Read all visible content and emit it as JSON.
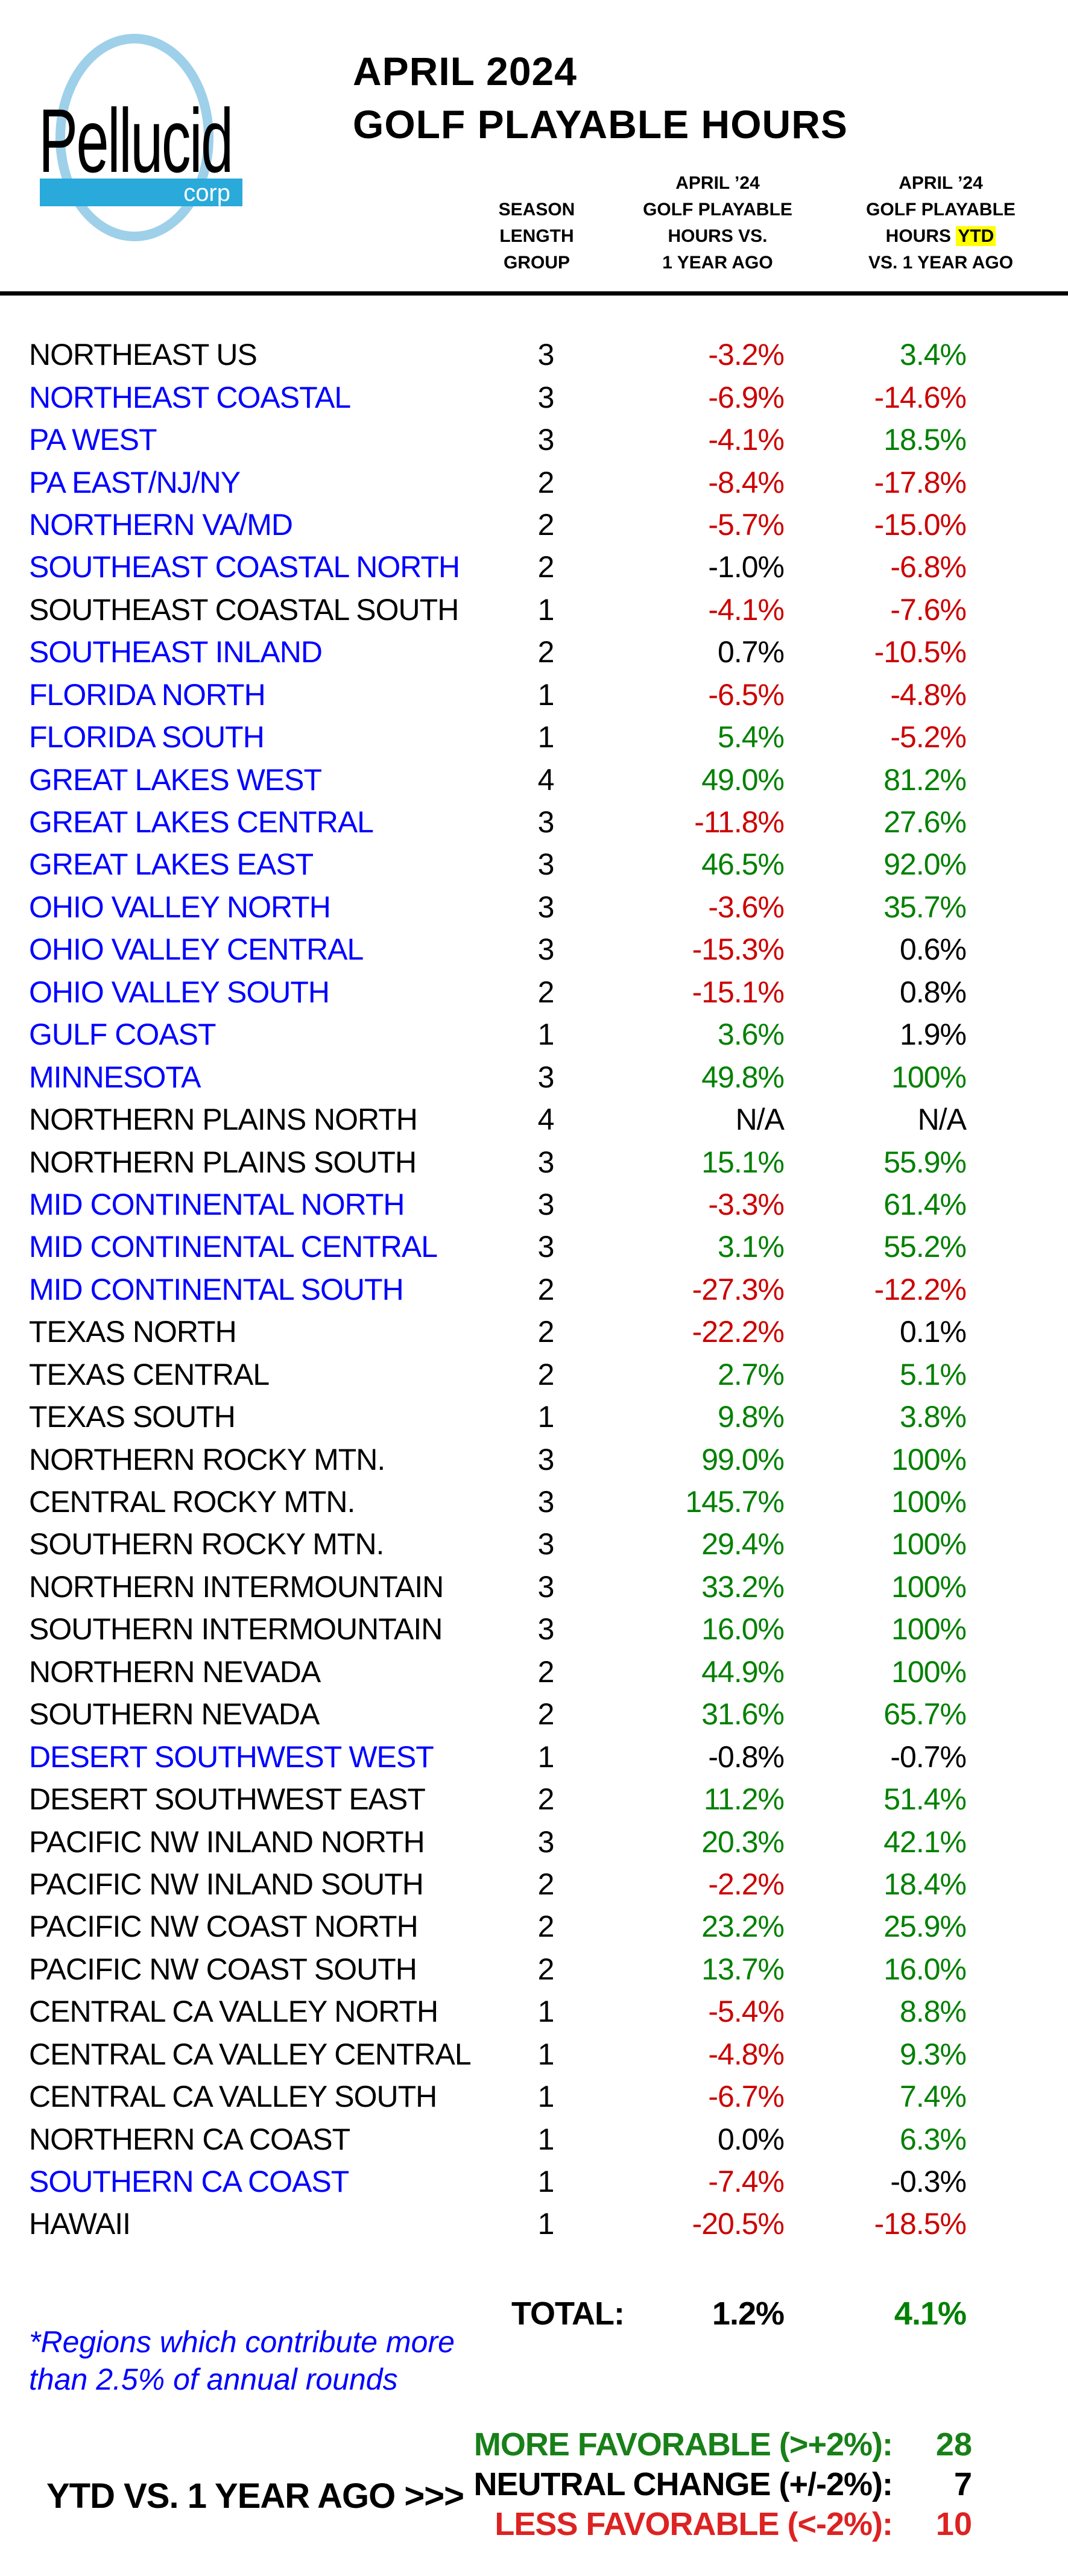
{
  "header": {
    "logo": {
      "name": "Pellucid",
      "suffix": "corp"
    },
    "title_line1": "APRIL 2024",
    "title_line2": "GOLF PLAYABLE HOURS",
    "columns": {
      "season": [
        "SEASON",
        "LENGTH",
        "GROUP"
      ],
      "col1": [
        "APRIL ’24",
        "GOLF PLAYABLE",
        "HOURS VS.",
        "1 YEAR AGO"
      ],
      "col2": {
        "line1": "APRIL ’24",
        "line2": "GOLF PLAYABLE",
        "line3_prefix": "HOURS",
        "line3_highlight": "YTD",
        "line4": "VS. 1 YEAR AGO"
      }
    }
  },
  "table": {
    "rows": [
      {
        "region": "NORTHEAST  US",
        "region_color": "black",
        "group": "3",
        "mtd": "-3.2%",
        "mtd_color": "red",
        "ytd": "3.4%",
        "ytd_color": "green"
      },
      {
        "region": "NORTHEAST COASTAL",
        "region_color": "blue",
        "group": "3",
        "mtd": "-6.9%",
        "mtd_color": "red",
        "ytd": "-14.6%",
        "ytd_color": "red"
      },
      {
        "region": "PA WEST",
        "region_color": "blue",
        "group": "3",
        "mtd": "-4.1%",
        "mtd_color": "red",
        "ytd": "18.5%",
        "ytd_color": "green"
      },
      {
        "region": "PA EAST/NJ/NY",
        "region_color": "blue",
        "group": "2",
        "mtd": "-8.4%",
        "mtd_color": "red",
        "ytd": "-17.8%",
        "ytd_color": "red"
      },
      {
        "region": "NORTHERN VA/MD",
        "region_color": "blue",
        "group": "2",
        "mtd": "-5.7%",
        "mtd_color": "red",
        "ytd": "-15.0%",
        "ytd_color": "red"
      },
      {
        "region": "SOUTHEAST COASTAL NORTH",
        "region_color": "blue",
        "group": "2",
        "mtd": "-1.0%",
        "mtd_color": "black",
        "ytd": "-6.8%",
        "ytd_color": "red"
      },
      {
        "region": "SOUTHEAST COASTAL SOUTH",
        "region_color": "black",
        "group": "1",
        "mtd": "-4.1%",
        "mtd_color": "red",
        "ytd": "-7.6%",
        "ytd_color": "red"
      },
      {
        "region": "SOUTHEAST INLAND",
        "region_color": "blue",
        "group": "2",
        "mtd": "0.7%",
        "mtd_color": "black",
        "ytd": "-10.5%",
        "ytd_color": "red"
      },
      {
        "region": "FLORIDA NORTH",
        "region_color": "blue",
        "group": "1",
        "mtd": "-6.5%",
        "mtd_color": "red",
        "ytd": "-4.8%",
        "ytd_color": "red"
      },
      {
        "region": "FLORIDA SOUTH",
        "region_color": "blue",
        "group": "1",
        "mtd": "5.4%",
        "mtd_color": "green",
        "ytd": "-5.2%",
        "ytd_color": "red"
      },
      {
        "region": "GREAT LAKES WEST",
        "region_color": "blue",
        "group": "4",
        "mtd": "49.0%",
        "mtd_color": "green",
        "ytd": "81.2%",
        "ytd_color": "green"
      },
      {
        "region": "GREAT LAKES CENTRAL",
        "region_color": "blue",
        "group": "3",
        "mtd": "-11.8%",
        "mtd_color": "red",
        "ytd": "27.6%",
        "ytd_color": "green"
      },
      {
        "region": "GREAT LAKES EAST",
        "region_color": "blue",
        "group": "3",
        "mtd": "46.5%",
        "mtd_color": "green",
        "ytd": "92.0%",
        "ytd_color": "green"
      },
      {
        "region": "OHIO VALLEY NORTH",
        "region_color": "blue",
        "group": "3",
        "mtd": "-3.6%",
        "mtd_color": "red",
        "ytd": "35.7%",
        "ytd_color": "green"
      },
      {
        "region": "OHIO VALLEY CENTRAL",
        "region_color": "blue",
        "group": "3",
        "mtd": "-15.3%",
        "mtd_color": "red",
        "ytd": "0.6%",
        "ytd_color": "black"
      },
      {
        "region": "OHIO VALLEY SOUTH",
        "region_color": "blue",
        "group": "2",
        "mtd": "-15.1%",
        "mtd_color": "red",
        "ytd": "0.8%",
        "ytd_color": "black"
      },
      {
        "region": "GULF COAST",
        "region_color": "blue",
        "group": "1",
        "mtd": "3.6%",
        "mtd_color": "green",
        "ytd": "1.9%",
        "ytd_color": "black"
      },
      {
        "region": "MINNESOTA",
        "region_color": "blue",
        "group": "3",
        "mtd": "49.8%",
        "mtd_color": "green",
        "ytd": "100%",
        "ytd_color": "green"
      },
      {
        "region": "NORTHERN PLAINS NORTH",
        "region_color": "black",
        "group": "4",
        "mtd": "N/A",
        "mtd_color": "black",
        "ytd": "N/A",
        "ytd_color": "black"
      },
      {
        "region": "NORTHERN PLAINS SOUTH",
        "region_color": "black",
        "group": "3",
        "mtd": "15.1%",
        "mtd_color": "green",
        "ytd": "55.9%",
        "ytd_color": "green"
      },
      {
        "region": "MID CONTINENTAL NORTH",
        "region_color": "blue",
        "group": "3",
        "mtd": "-3.3%",
        "mtd_color": "red",
        "ytd": "61.4%",
        "ytd_color": "green"
      },
      {
        "region": "MID CONTINENTAL CENTRAL",
        "region_color": "blue",
        "group": "3",
        "mtd": "3.1%",
        "mtd_color": "green",
        "ytd": "55.2%",
        "ytd_color": "green"
      },
      {
        "region": "MID CONTINENTAL SOUTH",
        "region_color": "blue",
        "group": "2",
        "mtd": "-27.3%",
        "mtd_color": "red",
        "ytd": "-12.2%",
        "ytd_color": "red"
      },
      {
        "region": "TEXAS NORTH",
        "region_color": "black",
        "group": "2",
        "mtd": "-22.2%",
        "mtd_color": "red",
        "ytd": "0.1%",
        "ytd_color": "black"
      },
      {
        "region": "TEXAS CENTRAL",
        "region_color": "black",
        "group": "2",
        "mtd": "2.7%",
        "mtd_color": "green",
        "ytd": "5.1%",
        "ytd_color": "green"
      },
      {
        "region": "TEXAS SOUTH",
        "region_color": "black",
        "group": "1",
        "mtd": "9.8%",
        "mtd_color": "green",
        "ytd": "3.8%",
        "ytd_color": "green"
      },
      {
        "region": "NORTHERN ROCKY MTN.",
        "region_color": "black",
        "group": "3",
        "mtd": "99.0%",
        "mtd_color": "green",
        "ytd": "100%",
        "ytd_color": "green"
      },
      {
        "region": "CENTRAL ROCKY MTN.",
        "region_color": "black",
        "group": "3",
        "mtd": "145.7%",
        "mtd_color": "green",
        "ytd": "100%",
        "ytd_color": "green"
      },
      {
        "region": "SOUTHERN ROCKY MTN.",
        "region_color": "black",
        "group": "3",
        "mtd": "29.4%",
        "mtd_color": "green",
        "ytd": "100%",
        "ytd_color": "green"
      },
      {
        "region": "NORTHERN INTERMOUNTAIN",
        "region_color": "black",
        "group": "3",
        "mtd": "33.2%",
        "mtd_color": "green",
        "ytd": "100%",
        "ytd_color": "green"
      },
      {
        "region": "SOUTHERN INTERMOUNTAIN",
        "region_color": "black",
        "group": "3",
        "mtd": "16.0%",
        "mtd_color": "green",
        "ytd": "100%",
        "ytd_color": "green"
      },
      {
        "region": "NORTHERN NEVADA",
        "region_color": "black",
        "group": "2",
        "mtd": "44.9%",
        "mtd_color": "green",
        "ytd": "100%",
        "ytd_color": "green"
      },
      {
        "region": "SOUTHERN NEVADA",
        "region_color": "black",
        "group": "2",
        "mtd": "31.6%",
        "mtd_color": "green",
        "ytd": "65.7%",
        "ytd_color": "green"
      },
      {
        "region": "DESERT SOUTHWEST WEST",
        "region_color": "blue",
        "group": "1",
        "mtd": "-0.8%",
        "mtd_color": "black",
        "ytd": "-0.7%",
        "ytd_color": "black"
      },
      {
        "region": "DESERT SOUTHWEST EAST",
        "region_color": "black",
        "group": "2",
        "mtd": "11.2%",
        "mtd_color": "green",
        "ytd": "51.4%",
        "ytd_color": "green"
      },
      {
        "region": "PACIFIC NW INLAND NORTH",
        "region_color": "black",
        "group": "3",
        "mtd": "20.3%",
        "mtd_color": "green",
        "ytd": "42.1%",
        "ytd_color": "green"
      },
      {
        "region": "PACIFIC NW INLAND SOUTH",
        "region_color": "black",
        "group": "2",
        "mtd": "-2.2%",
        "mtd_color": "red",
        "ytd": "18.4%",
        "ytd_color": "green"
      },
      {
        "region": "PACIFIC NW COAST NORTH",
        "region_color": "black",
        "group": "2",
        "mtd": "23.2%",
        "mtd_color": "green",
        "ytd": "25.9%",
        "ytd_color": "green"
      },
      {
        "region": "PACIFIC NW COAST SOUTH",
        "region_color": "black",
        "group": "2",
        "mtd": "13.7%",
        "mtd_color": "green",
        "ytd": "16.0%",
        "ytd_color": "green"
      },
      {
        "region": "CENTRAL CA VALLEY NORTH",
        "region_color": "black",
        "group": "1",
        "mtd": "-5.4%",
        "mtd_color": "red",
        "ytd": "8.8%",
        "ytd_color": "green"
      },
      {
        "region": "CENTRAL CA VALLEY CENTRAL",
        "region_color": "black",
        "group": "1",
        "mtd": "-4.8%",
        "mtd_color": "red",
        "ytd": "9.3%",
        "ytd_color": "green"
      },
      {
        "region": "CENTRAL CA VALLEY SOUTH",
        "region_color": "black",
        "group": "1",
        "mtd": "-6.7%",
        "mtd_color": "red",
        "ytd": "7.4%",
        "ytd_color": "green"
      },
      {
        "region": "NORTHERN CA COAST",
        "region_color": "black",
        "group": "1",
        "mtd": "0.0%",
        "mtd_color": "black",
        "ytd": "6.3%",
        "ytd_color": "green"
      },
      {
        "region": "SOUTHERN CA COAST",
        "region_color": "blue",
        "group": "1",
        "mtd": "-7.4%",
        "mtd_color": "red",
        "ytd": "-0.3%",
        "ytd_color": "black"
      },
      {
        "region": "HAWAII",
        "region_color": "black",
        "group": "1",
        "mtd": "-20.5%",
        "mtd_color": "red",
        "ytd": "-18.5%",
        "ytd_color": "red"
      }
    ]
  },
  "total": {
    "label": "TOTAL:",
    "mtd": "1.2%",
    "mtd_color": "black",
    "ytd": "4.1%",
    "ytd_color": "green"
  },
  "footnote": {
    "line1": "*Regions which contribute more",
    "line2": "than 2.5% of annual rounds"
  },
  "summary": {
    "ytd_label": "YTD VS. 1 YEAR AGO >>>",
    "stats": [
      {
        "label": "MORE FAVORABLE (>+2%):",
        "value": "28",
        "color": "green"
      },
      {
        "label": "NEUTRAL CHANGE (+/-2%):",
        "value": "7",
        "color": "black"
      },
      {
        "label": "LESS FAVORABLE (<-2%):",
        "value": "10",
        "color": "red"
      }
    ]
  },
  "colors": {
    "region_blue": "#0000ff",
    "value_red": "#cc0000",
    "value_green": "#008000",
    "text_black": "#000000",
    "summary_green": "#188018",
    "summary_red": "#dd2222",
    "logo_bar_cyan": "#29aadb",
    "logo_ellipse_blue": "#9ed0ea",
    "ytd_highlight_yellow": "#ffff00"
  }
}
